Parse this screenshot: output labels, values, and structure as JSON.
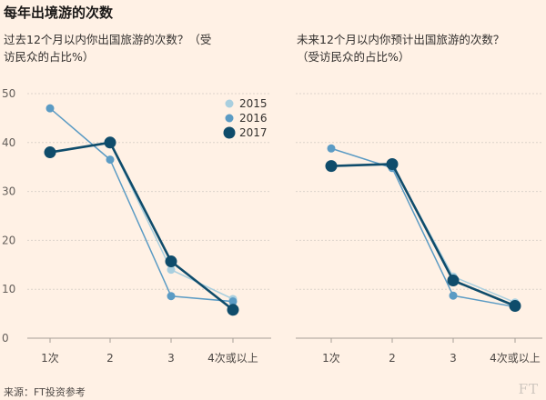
{
  "title": "每年出境游的次数",
  "source": "来源：FT投资参考",
  "logo_text": "FT",
  "colors": {
    "background": "#FFF1E5",
    "grid": "#DCD3CA",
    "2015": "#A9CFDF",
    "2016": "#5B9BC4",
    "2017": "#0F4C6B"
  },
  "chart_data": [
    {
      "type": "line",
      "subtitle": "过去12个月以内你出国旅游的次数？（受访民众的占比%）",
      "categories": [
        "1次",
        "2",
        "3",
        "4次或以上"
      ],
      "ylim": [
        0,
        50
      ],
      "yticks": [
        "0",
        "10",
        "20",
        "30",
        "40",
        "50"
      ],
      "grid": true,
      "legend_position": "top-right",
      "series": [
        {
          "name": "2015",
          "values": [
            38,
            40,
            14,
            8
          ]
        },
        {
          "name": "2016",
          "values": [
            47,
            36.5,
            8.6,
            7.5
          ]
        },
        {
          "name": "2017",
          "values": [
            38,
            40,
            15.7,
            5.8
          ]
        }
      ]
    },
    {
      "type": "line",
      "subtitle": "未来12个月以内你预计出国旅游的次数？（受访民众的占比%）",
      "categories": [
        "1次",
        "2",
        "3",
        "4次或以上"
      ],
      "ylim": [
        0,
        50
      ],
      "grid": true,
      "series": [
        {
          "name": "2015",
          "values": [
            35.2,
            35.5,
            12.6,
            7.3
          ]
        },
        {
          "name": "2016",
          "values": [
            38.8,
            34.8,
            8.7,
            6.4
          ]
        },
        {
          "name": "2017",
          "values": [
            35.2,
            35.6,
            11.8,
            6.6
          ]
        }
      ]
    }
  ]
}
